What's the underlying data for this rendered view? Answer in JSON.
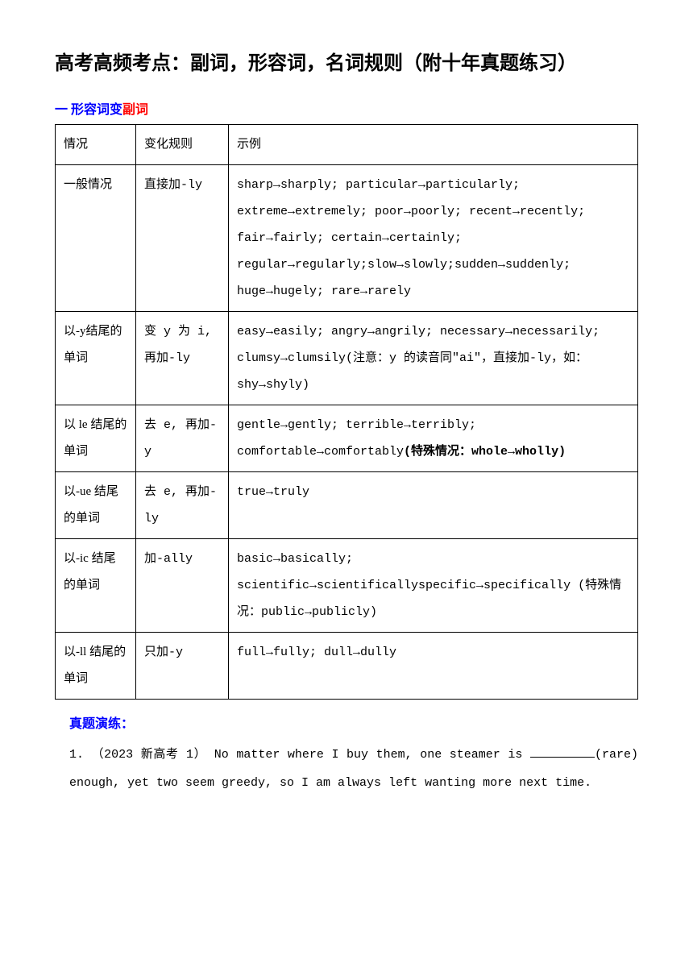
{
  "title": "高考高频考点：副词，形容词，名词规则（附十年真题练习）",
  "section1": {
    "prefix": "一 形容词变",
    "suffix": "副词"
  },
  "table": {
    "headers": {
      "col1": "情况",
      "col2": "变化规则",
      "col3": "示例"
    },
    "rows": [
      {
        "col1": "一般情况",
        "col2": "直接加-ly",
        "col3": "sharp→sharply; particular→particularly; extreme→extremely; poor→poorly; recent→recently; fair→fairly; certain→certainly; regular→regularly;slow→slowly;sudden→suddenly; huge→hugely; rare→rarely"
      },
      {
        "col1": "以-y结尾的单词",
        "col2": "变 y 为 i, 再加-ly",
        "col3": "easy→easily; angry→angrily; necessary→necessarily; clumsy→clumsily(注意：y 的读音同\"ai\"，直接加-ly，如：shy→shyly)"
      },
      {
        "col1": "以 le 结尾的单词",
        "col2": "去 e, 再加-y",
        "col3_prefix": "gentle→gently; terrible→terribly; comfortable→comfortably",
        "col3_bold": "(特殊情况：whole→wholly)"
      },
      {
        "col1": "以-ue 结尾的单词",
        "col2": "去 e, 再加-ly",
        "col3": "true→truly"
      },
      {
        "col1": "以-ic 结尾的单词",
        "col2": "加-ally",
        "col3": "basic→basically; scientific→scientificallyspecific→specifically (特殊情况：public→publicly)"
      },
      {
        "col1": "以-ll 结尾的单词",
        "col2": "只加-y",
        "col3": "full→fully; dull→dully"
      }
    ]
  },
  "exercise": {
    "header": "真题演练：",
    "items": [
      {
        "number": "1.",
        "source": "（2023 新高考 1）",
        "text_before": "No matter where I buy them, one steamer is ",
        "blank_word": "(rare)",
        "text_after": " enough, yet two seem greedy, so I am always left wanting more next time."
      }
    ]
  }
}
